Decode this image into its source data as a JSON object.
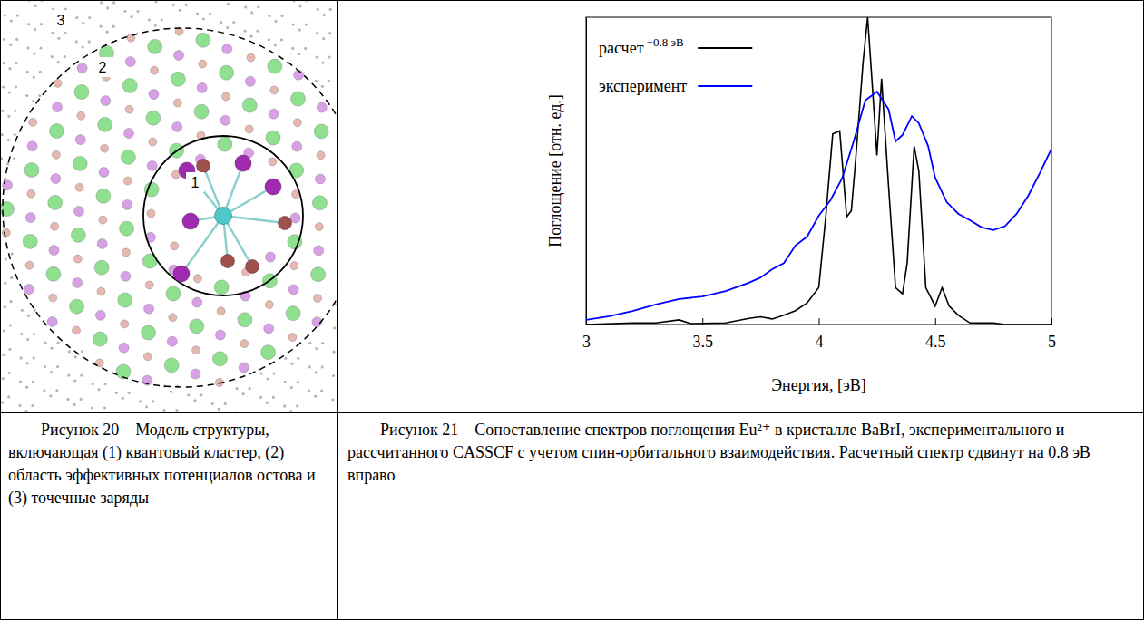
{
  "captions": [
    "Рисунок 20 – Модель структуры, включающая (1) квантовый кластер, (2) область эффективных потенциалов остова и (3) точечные заряды",
    "Рисунок 21 – Сопоставление спектров поглощения Eu²⁺ в кристалле BaBrI, экспериментального и рассчитанного CASSCF с учетом спин-орбитального взаимодействия. Расчетный спектр сдвинут на 0.8 эВ вправо"
  ],
  "diagram": {
    "region_labels": [
      "1",
      "2",
      "3"
    ]
  },
  "chart_data": {
    "type": "line",
    "xlabel": "Энергия, [эВ]",
    "ylabel": "Поглощение [отн. ед.]",
    "xlim": [
      3,
      5
    ],
    "xticks": [
      3,
      3.5,
      4,
      4.5,
      5
    ],
    "ylim": [
      0,
      1
    ],
    "yticks": [],
    "tick_labels": "x",
    "legend": "upper left",
    "annotations": [
      "+0.8 эВ"
    ],
    "series": [
      {
        "name": "расчет",
        "color": "#000000",
        "x": [
          3.0,
          3.2,
          3.3,
          3.4,
          3.45,
          3.6,
          3.7,
          3.75,
          3.8,
          3.85,
          3.9,
          3.95,
          4.0,
          4.03,
          4.06,
          4.09,
          4.12,
          4.14,
          4.16,
          4.19,
          4.21,
          4.23,
          4.25,
          4.27,
          4.3,
          4.33,
          4.36,
          4.38,
          4.41,
          4.43,
          4.46,
          4.5,
          4.53,
          4.56,
          4.6,
          4.65,
          4.75,
          4.8,
          5.0
        ],
        "values": [
          0,
          0.005,
          0.005,
          0.015,
          0.003,
          0.005,
          0.02,
          0.025,
          0.018,
          0.03,
          0.045,
          0.07,
          0.12,
          0.35,
          0.62,
          0.63,
          0.35,
          0.37,
          0.55,
          0.85,
          1.0,
          0.78,
          0.55,
          0.8,
          0.45,
          0.12,
          0.1,
          0.2,
          0.58,
          0.5,
          0.12,
          0.06,
          0.12,
          0.06,
          0.03,
          0.005,
          0.005,
          0,
          0
        ]
      },
      {
        "name": "эксперимент",
        "color": "#0000ff",
        "x": [
          3.0,
          3.1,
          3.2,
          3.3,
          3.4,
          3.5,
          3.6,
          3.7,
          3.75,
          3.8,
          3.85,
          3.9,
          3.95,
          4.0,
          4.05,
          4.1,
          4.15,
          4.2,
          4.25,
          4.3,
          4.33,
          4.36,
          4.4,
          4.43,
          4.47,
          4.5,
          4.55,
          4.6,
          4.65,
          4.7,
          4.75,
          4.8,
          4.85,
          4.9,
          4.95,
          5.0
        ],
        "values": [
          0.015,
          0.027,
          0.044,
          0.065,
          0.083,
          0.091,
          0.109,
          0.136,
          0.153,
          0.18,
          0.2,
          0.257,
          0.286,
          0.354,
          0.404,
          0.475,
          0.596,
          0.729,
          0.758,
          0.7,
          0.596,
          0.617,
          0.678,
          0.655,
          0.581,
          0.478,
          0.398,
          0.36,
          0.339,
          0.316,
          0.307,
          0.32,
          0.36,
          0.419,
          0.493,
          0.572
        ]
      }
    ]
  }
}
